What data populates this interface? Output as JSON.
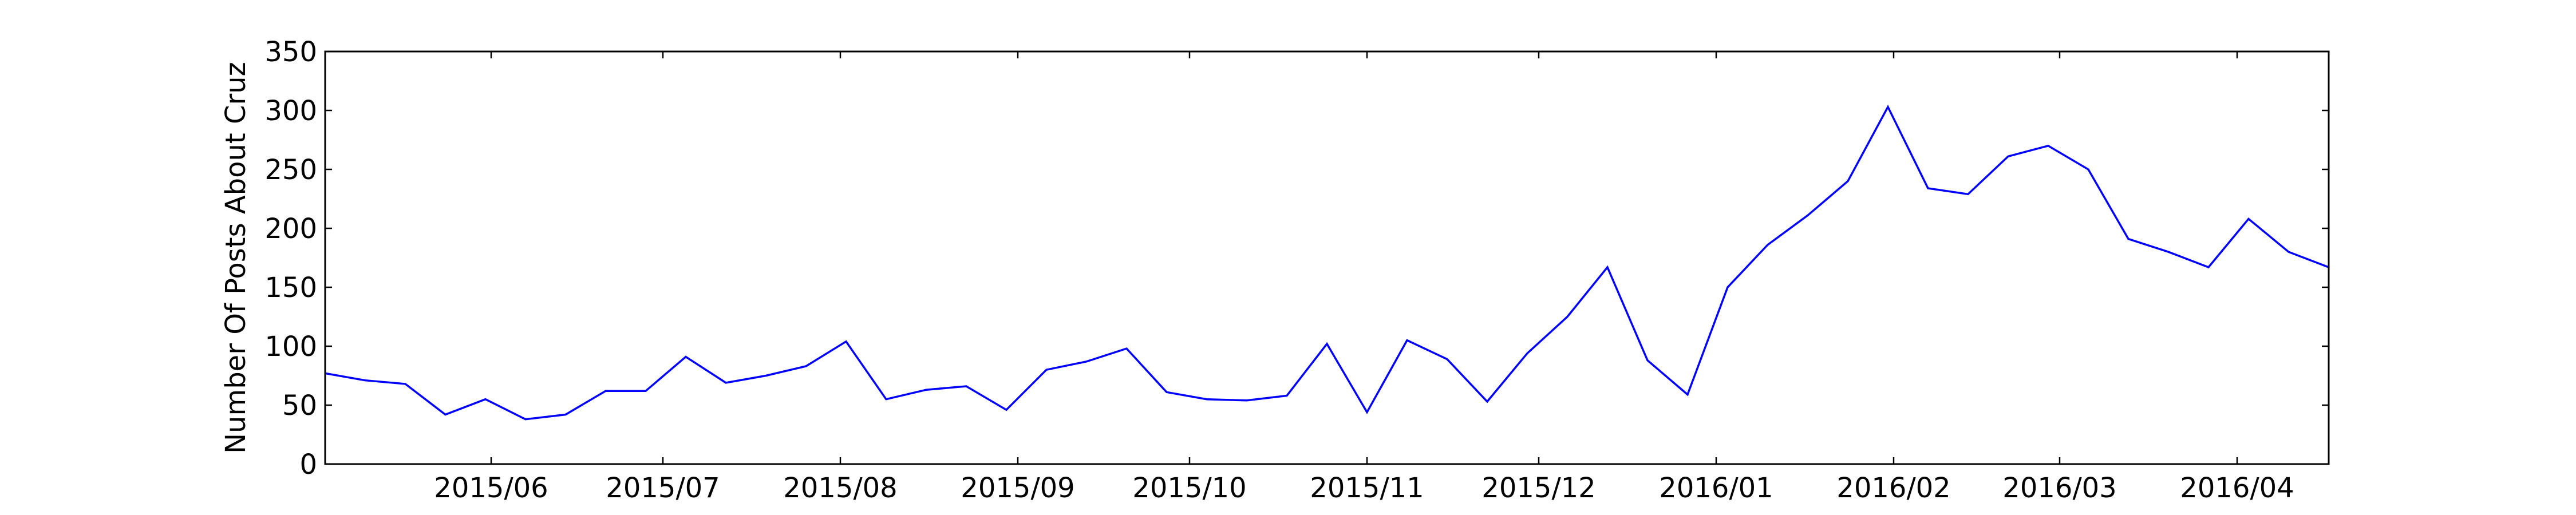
{
  "chart_data": {
    "type": "line",
    "ylabel": "Number Of Posts About Cruz",
    "xlabel": "",
    "title": "",
    "ylim": [
      0,
      350
    ],
    "xlim": [
      "2015-05-03",
      "2016-04-17"
    ],
    "yticks": [
      0,
      50,
      100,
      150,
      200,
      250,
      300,
      350
    ],
    "ytick_labels": [
      "0",
      "50",
      "100",
      "150",
      "200",
      "250",
      "300",
      "350"
    ],
    "xticks": [
      "2015-06-01",
      "2015-07-01",
      "2015-08-01",
      "2015-09-01",
      "2015-10-01",
      "2015-11-01",
      "2015-12-01",
      "2016-01-01",
      "2016-02-01",
      "2016-03-01",
      "2016-04-01"
    ],
    "xtick_labels": [
      "2015/06",
      "2015/07",
      "2015/08",
      "2015/09",
      "2015/10",
      "2015/11",
      "2015/12",
      "2016/01",
      "2016/02",
      "2016/03",
      "2016/04"
    ],
    "grid": false,
    "line_color": "#0000ff",
    "series": [
      {
        "x": [
          "2015-05-03",
          "2015-05-10",
          "2015-05-17",
          "2015-05-24",
          "2015-05-31",
          "2015-06-07",
          "2015-06-14",
          "2015-06-21",
          "2015-06-28",
          "2015-07-05",
          "2015-07-12",
          "2015-07-19",
          "2015-07-26",
          "2015-08-02",
          "2015-08-09",
          "2015-08-16",
          "2015-08-23",
          "2015-08-30",
          "2015-09-06",
          "2015-09-13",
          "2015-09-20",
          "2015-09-27",
          "2015-10-04",
          "2015-10-11",
          "2015-10-18",
          "2015-10-25",
          "2015-11-01",
          "2015-11-08",
          "2015-11-15",
          "2015-11-22",
          "2015-11-29",
          "2015-12-06",
          "2015-12-13",
          "2015-12-20",
          "2015-12-27",
          "2016-01-03",
          "2016-01-10",
          "2016-01-17",
          "2016-01-24",
          "2016-01-31",
          "2016-02-07",
          "2016-02-14",
          "2016-02-21",
          "2016-02-28",
          "2016-03-06",
          "2016-03-13",
          "2016-03-20",
          "2016-03-27",
          "2016-04-03",
          "2016-04-10",
          "2016-04-17"
        ],
        "values": [
          77,
          71,
          68,
          42,
          55,
          38,
          42,
          62,
          62,
          91,
          69,
          75,
          83,
          104,
          55,
          63,
          66,
          46,
          80,
          87,
          98,
          61,
          55,
          54,
          58,
          102,
          44,
          105,
          89,
          53,
          94,
          125,
          167,
          88,
          59,
          150,
          186,
          211,
          240,
          303,
          234,
          229,
          261,
          270,
          250,
          191,
          180,
          167,
          208,
          180,
          167
        ]
      }
    ]
  }
}
